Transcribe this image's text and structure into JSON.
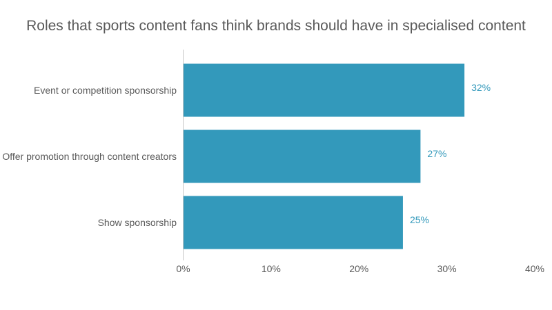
{
  "chart_data": {
    "type": "bar",
    "orientation": "horizontal",
    "title": "Roles that sports content fans think brands should have in specialised content",
    "categories": [
      "Event or competition sponsorship",
      "Offer promotion through content creators",
      "Show sponsorship"
    ],
    "values": [
      32,
      27,
      25
    ],
    "data_labels": [
      "32%",
      "27%",
      "25%"
    ],
    "xlim": [
      0,
      40
    ],
    "x_ticks": [
      0,
      10,
      20,
      30,
      40
    ],
    "x_tick_labels": [
      "0%",
      "10%",
      "20%",
      "30%",
      "40%"
    ],
    "xlabel": "",
    "ylabel": "",
    "grid": false,
    "legend": "none",
    "bar_color": "#3399bb",
    "label_color": "#3399bb",
    "text_color": "#595959",
    "axis_color": "#c8c8c8"
  }
}
